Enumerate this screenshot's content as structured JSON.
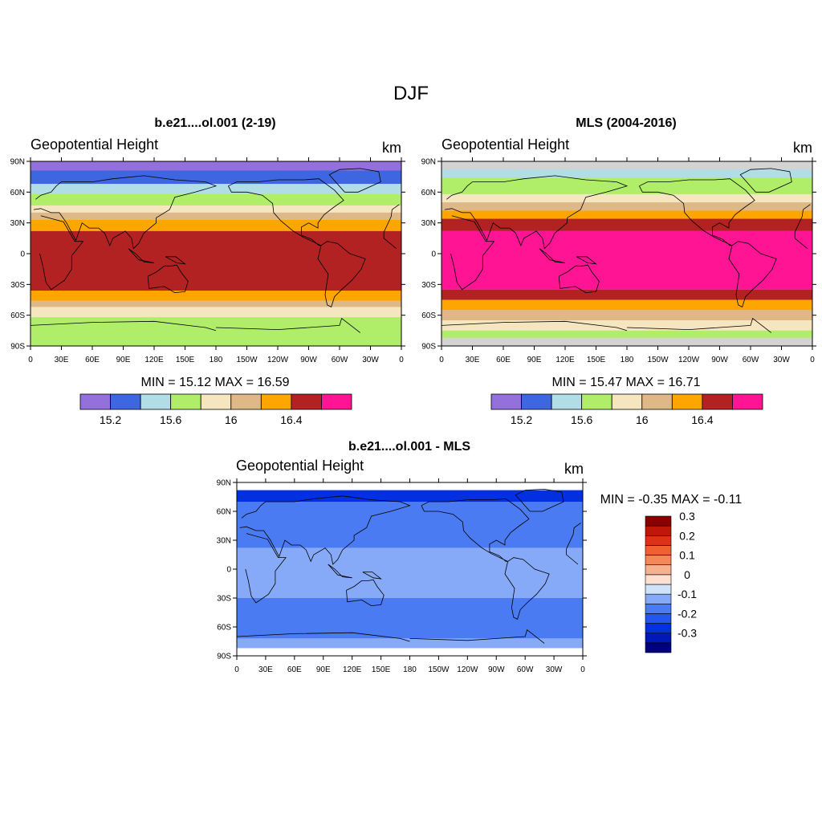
{
  "page_title": "DJF",
  "chart_data": [
    {
      "type": "heatmap",
      "title": "b.e21....ol.001 (2-19)",
      "left_label": "Geopotential Height",
      "units": "km",
      "stats": "MIN =  15.12  MAX =  16.59",
      "ylabels": [
        "90N",
        "60N",
        "30N",
        "0",
        "30S",
        "60S",
        "90S"
      ],
      "xlabels": [
        "0",
        "30E",
        "60E",
        "90E",
        "120E",
        "150E",
        "180",
        "150W",
        "120W",
        "90W",
        "60W",
        "30W",
        "0"
      ],
      "colorbar": {
        "colors": [
          "#9370db",
          "#3e66e0",
          "#b0dde6",
          "#b0ee6a",
          "#f5e6c0",
          "#deb887",
          "#ffa500",
          "#b22222",
          "#ff1493"
        ],
        "labels": [
          "15.2",
          "15.6",
          "16",
          "16.4"
        ]
      },
      "bands": [
        {
          "lat_from": 90,
          "lat_to": 81,
          "value": 15.12
        },
        {
          "lat_from": 81,
          "lat_to": 68,
          "value": 15.3
        },
        {
          "lat_from": 68,
          "lat_to": 58,
          "value": 15.5
        },
        {
          "lat_from": 58,
          "lat_to": 47,
          "value": 15.7
        },
        {
          "lat_from": 47,
          "lat_to": 40,
          "value": 15.9
        },
        {
          "lat_from": 40,
          "lat_to": 33,
          "value": 16.1
        },
        {
          "lat_from": 33,
          "lat_to": 22,
          "value": 16.3
        },
        {
          "lat_from": 22,
          "lat_to": -36,
          "value": 16.5
        },
        {
          "lat_from": -36,
          "lat_to": -46,
          "value": 16.3
        },
        {
          "lat_from": -46,
          "lat_to": -52,
          "value": 16.1
        },
        {
          "lat_from": -52,
          "lat_to": -62,
          "value": 15.9
        },
        {
          "lat_from": -62,
          "lat_to": -90,
          "value": 15.7
        }
      ]
    },
    {
      "type": "heatmap",
      "title": "MLS (2004-2016)",
      "left_label": "Geopotential Height",
      "units": "km",
      "stats": "MIN =  15.47  MAX =  16.71",
      "ylabels": [
        "90N",
        "60N",
        "30N",
        "0",
        "30S",
        "60S",
        "90S"
      ],
      "xlabels": [
        "0",
        "30E",
        "60E",
        "90E",
        "120E",
        "150E",
        "180",
        "150W",
        "120W",
        "90W",
        "60W",
        "30W",
        "0"
      ],
      "colorbar": {
        "colors": [
          "#9370db",
          "#3e66e0",
          "#b0dde6",
          "#b0ee6a",
          "#f5e6c0",
          "#deb887",
          "#ffa500",
          "#b22222",
          "#ff1493"
        ],
        "labels": [
          "15.2",
          "15.6",
          "16",
          "16.4"
        ]
      },
      "bands": [
        {
          "lat_from": 82,
          "lat_to": 74,
          "value": 15.5
        },
        {
          "lat_from": 74,
          "lat_to": 58,
          "value": 15.7
        },
        {
          "lat_from": 58,
          "lat_to": 50,
          "value": 15.9
        },
        {
          "lat_from": 50,
          "lat_to": 42,
          "value": 16.1
        },
        {
          "lat_from": 42,
          "lat_to": 34,
          "value": 16.3
        },
        {
          "lat_from": 34,
          "lat_to": 22,
          "value": 16.5
        },
        {
          "lat_from": 22,
          "lat_to": -35,
          "value": 16.71
        },
        {
          "lat_from": -35,
          "lat_to": -45,
          "value": 16.5
        },
        {
          "lat_from": -45,
          "lat_to": -55,
          "value": 16.3
        },
        {
          "lat_from": -55,
          "lat_to": -65,
          "value": 16.1
        },
        {
          "lat_from": -65,
          "lat_to": -75,
          "value": 15.9
        },
        {
          "lat_from": -75,
          "lat_to": -82,
          "value": 15.7
        }
      ]
    },
    {
      "type": "heatmap",
      "title": "b.e21....ol.001 - MLS",
      "left_label": "Geopotential Height",
      "units": "km",
      "stats": "MIN =  -0.35  MAX =  -0.11",
      "ylabels": [
        "90N",
        "60N",
        "30N",
        "0",
        "30S",
        "60S",
        "90S"
      ],
      "xlabels": [
        "0",
        "30E",
        "60E",
        "90E",
        "120E",
        "150E",
        "180",
        "150W",
        "120W",
        "90W",
        "60W",
        "30W",
        "0"
      ],
      "colorbar": {
        "colors": [
          "#000080",
          "#0018b8",
          "#0030e0",
          "#2356f0",
          "#4a7bf2",
          "#86aaf8",
          "#cfe3fb",
          "#fde0d0",
          "#f7b090",
          "#f48858",
          "#f06030",
          "#e03018",
          "#c01808",
          "#8b0000"
        ],
        "labels": [
          "-0.3",
          "-0.2",
          "-0.1",
          "0",
          "0.1",
          "0.2",
          "0.3"
        ]
      },
      "bands": [
        {
          "lat_from": 82,
          "lat_to": 70,
          "value": -0.3
        },
        {
          "lat_from": 70,
          "lat_to": 22,
          "value": -0.2
        },
        {
          "lat_from": 22,
          "lat_to": -30,
          "value": -0.12
        },
        {
          "lat_from": -30,
          "lat_to": -72,
          "value": -0.2
        },
        {
          "lat_from": -72,
          "lat_to": -82,
          "value": -0.12
        }
      ]
    }
  ]
}
